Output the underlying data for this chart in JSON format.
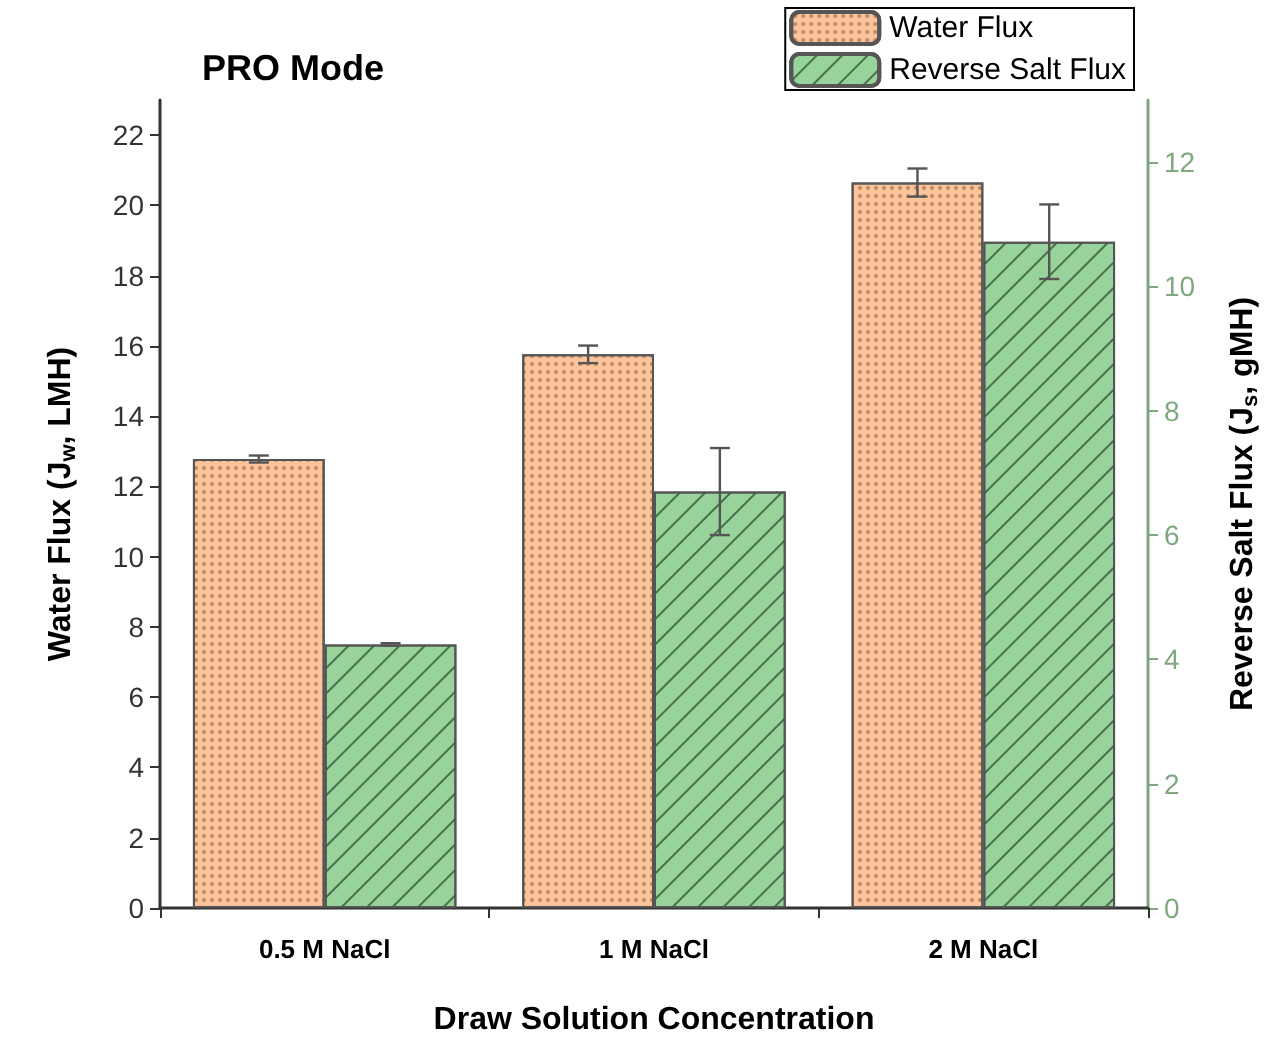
{
  "chart_data": {
    "type": "bar",
    "title": "PRO Mode",
    "xlabel": "Draw Solution Concentration",
    "ylabel": "Water Flux (J$_{w}$, LMH)",
    "y2label": "Reverse Salt Flux (J$_{s}$, gMH)",
    "categories": [
      "0.5 M NaCl",
      "1 M NaCl",
      "2 M NaCl"
    ],
    "series": [
      {
        "name": "Water Flux",
        "color": "#fdc49b",
        "values": [
          12.78,
          15.76,
          20.65
        ],
        "errors": [
          0.1,
          0.25,
          0.4
        ]
      },
      {
        "name": "Reverse Salt Flux",
        "color": "#97d39a",
        "axis": "y2",
        "values": [
          4.24,
          6.7,
          10.72
        ],
        "errors": [
          0.02,
          0.7,
          0.6
        ]
      }
    ],
    "ylim": [
      0,
      23
    ],
    "yticks": [
      0,
      2,
      4,
      6,
      8,
      10,
      12,
      14,
      16,
      18,
      20,
      22
    ],
    "y2lim": [
      0,
      13
    ],
    "y2ticks": [
      0,
      2,
      4,
      6,
      8,
      10,
      12
    ],
    "legend": "top right",
    "grid": false
  }
}
